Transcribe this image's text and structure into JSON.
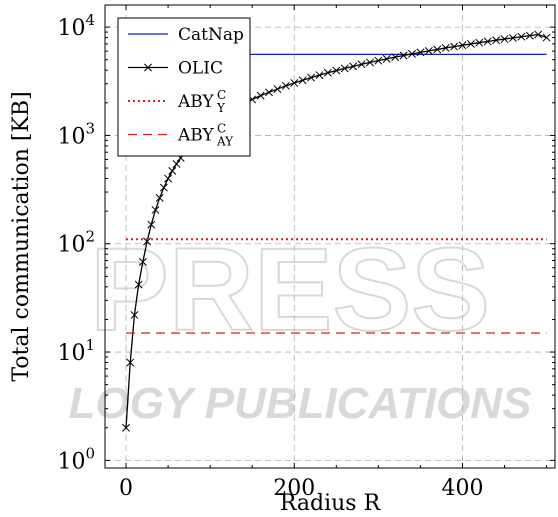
{
  "chart_data": {
    "type": "line",
    "xlabel": "Radius R",
    "ylabel": "Total communication [KB]",
    "x_scale": "linear",
    "y_scale": "log10",
    "xlim": [
      -25,
      510
    ],
    "ylim": [
      0.85,
      16000
    ],
    "x_ticks": [
      0,
      200,
      400
    ],
    "x_tick_labels": [
      "0",
      "200",
      "400"
    ],
    "y_ticks": [
      1,
      10,
      100,
      1000,
      10000
    ],
    "y_tick_labels": [
      {
        "base": "10",
        "exp": "0"
      },
      {
        "base": "10",
        "exp": "1"
      },
      {
        "base": "10",
        "exp": "2"
      },
      {
        "base": "10",
        "exp": "3"
      },
      {
        "base": "10",
        "exp": "4"
      }
    ],
    "grid": true,
    "legend_position": "top-left",
    "series": [
      {
        "name": "CatNap",
        "legend_label": {
          "base": "CatNap"
        },
        "color": "#1a1ad6",
        "dash": "solid",
        "marker": "none",
        "x": [
          140,
          500
        ],
        "y": [
          5600,
          5600
        ]
      },
      {
        "name": "OLIC",
        "legend_label": {
          "base": "OLIC"
        },
        "color": "#000000",
        "dash": "solid",
        "marker": "x",
        "x": [
          0,
          5,
          10,
          15,
          20,
          25,
          30,
          35,
          40,
          45,
          50,
          55,
          60,
          65,
          70,
          75,
          80,
          85,
          90,
          95,
          100,
          110,
          120,
          130,
          140,
          150,
          160,
          170,
          180,
          190,
          200,
          210,
          220,
          230,
          240,
          250,
          260,
          270,
          280,
          290,
          300,
          310,
          320,
          330,
          340,
          350,
          360,
          370,
          380,
          390,
          400,
          410,
          420,
          430,
          440,
          450,
          460,
          470,
          480,
          490,
          500
        ],
        "y": [
          2.0,
          8,
          22,
          42,
          68,
          105,
          150,
          205,
          265,
          330,
          400,
          470,
          545,
          620,
          700,
          780,
          860,
          940,
          1030,
          1110,
          1200,
          1400,
          1600,
          1800,
          1970,
          2150,
          2330,
          2500,
          2680,
          2870,
          3050,
          3230,
          3420,
          3600,
          3790,
          3970,
          4160,
          4340,
          4530,
          4720,
          4900,
          5090,
          5280,
          5470,
          5660,
          5850,
          6030,
          6220,
          6420,
          6610,
          6800,
          6990,
          7180,
          7370,
          7570,
          7760,
          7950,
          8150,
          8340,
          8540,
          8000
        ]
      },
      {
        "name": "ABY_Y^C",
        "legend_label": {
          "base": "ABY",
          "sup": "C",
          "sub": "Y"
        },
        "color": "#d42020",
        "dash": "dotted",
        "marker": "none",
        "x": [
          0,
          500
        ],
        "y": [
          110,
          110
        ]
      },
      {
        "name": "ABY_AY^C",
        "legend_label": {
          "base": "ABY",
          "sup": "C",
          "sub": "AY"
        },
        "color": "#d42020",
        "dash": "dashed",
        "marker": "none",
        "x": [
          0,
          500
        ],
        "y": [
          15,
          15
        ]
      }
    ]
  },
  "watermark": {
    "words": [
      "PRESS",
      "LOGY PUBLICATIONS"
    ],
    "color": "#d9d9d9"
  }
}
